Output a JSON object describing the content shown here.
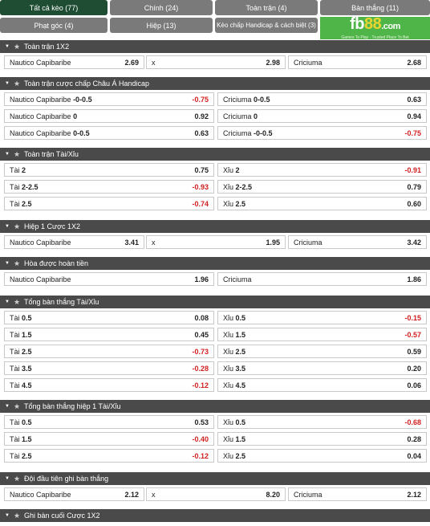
{
  "tabs": [
    {
      "label": "Tất cả kèo (77)",
      "active": true
    },
    {
      "label": "Chính (24)",
      "active": false
    },
    {
      "label": "Toàn trận (4)",
      "active": false
    },
    {
      "label": "Bàn thắng (11)",
      "active": false
    },
    {
      "label": "Phạt góc (4)",
      "active": false
    },
    {
      "label": "Hiệp (13)",
      "active": false
    },
    {
      "label": "Kèo chấp Handicap & cách biệt (3)",
      "active": false
    }
  ],
  "logo": {
    "brand_a": "fb",
    "brand_b": "88",
    "brand_c": ".com",
    "tagline": "Games To Play · Trusted Place To Bet"
  },
  "sections": [
    {
      "title": "Toàn trận 1X2",
      "layout": "three",
      "rows": [
        [
          {
            "name": "Nautico Capibaribe",
            "odd": "2.69"
          },
          {
            "name": "x",
            "odd": "2.98"
          },
          {
            "name": "Criciuma",
            "odd": "2.68"
          }
        ]
      ]
    },
    {
      "title": "Toàn trận cược chấp Châu Á Handicap",
      "layout": "two",
      "rows": [
        [
          {
            "name": "Nautico Capibaribe",
            "line": "-0-0.5",
            "odd": "-0.75"
          },
          {
            "name": "Criciuma",
            "line": "0-0.5",
            "odd": "0.63"
          }
        ],
        [
          {
            "name": "Nautico Capibaribe",
            "line": "0",
            "odd": "0.92"
          },
          {
            "name": "Criciuma",
            "line": "0",
            "odd": "0.94"
          }
        ],
        [
          {
            "name": "Nautico Capibaribe",
            "line": "0-0.5",
            "odd": "0.63"
          },
          {
            "name": "Criciuma",
            "line": "-0-0.5",
            "odd": "-0.75"
          }
        ]
      ]
    },
    {
      "title": "Toàn trận Tài/Xỉu",
      "layout": "two",
      "rows": [
        [
          {
            "name": "Tài",
            "line": "2",
            "odd": "0.75"
          },
          {
            "name": "Xỉu",
            "line": "2",
            "odd": "-0.91"
          }
        ],
        [
          {
            "name": "Tài",
            "line": "2-2.5",
            "odd": "-0.93"
          },
          {
            "name": "Xỉu",
            "line": "2-2.5",
            "odd": "0.79"
          }
        ],
        [
          {
            "name": "Tài",
            "line": "2.5",
            "odd": "-0.74"
          },
          {
            "name": "Xỉu",
            "line": "2.5",
            "odd": "0.60"
          }
        ]
      ]
    },
    {
      "title": "Hiệp 1 Cược 1X2",
      "layout": "three",
      "rows": [
        [
          {
            "name": "Nautico Capibaribe",
            "odd": "3.41"
          },
          {
            "name": "x",
            "odd": "1.95"
          },
          {
            "name": "Criciuma",
            "odd": "3.42"
          }
        ]
      ]
    },
    {
      "title": "Hòa được hoàn tiền",
      "layout": "two",
      "rows": [
        [
          {
            "name": "Nautico Capibaribe",
            "odd": "1.96"
          },
          {
            "name": "Criciuma",
            "odd": "1.86"
          }
        ]
      ]
    },
    {
      "title": "Tổng bàn thắng Tài/Xỉu",
      "layout": "two",
      "rows": [
        [
          {
            "name": "Tài",
            "line": "0.5",
            "odd": "0.08"
          },
          {
            "name": "Xỉu",
            "line": "0.5",
            "odd": "-0.15"
          }
        ],
        [
          {
            "name": "Tài",
            "line": "1.5",
            "odd": "0.45"
          },
          {
            "name": "Xỉu",
            "line": "1.5",
            "odd": "-0.57"
          }
        ],
        [
          {
            "name": "Tài",
            "line": "2.5",
            "odd": "-0.73"
          },
          {
            "name": "Xỉu",
            "line": "2.5",
            "odd": "0.59"
          }
        ],
        [
          {
            "name": "Tài",
            "line": "3.5",
            "odd": "-0.28"
          },
          {
            "name": "Xỉu",
            "line": "3.5",
            "odd": "0.20"
          }
        ],
        [
          {
            "name": "Tài",
            "line": "4.5",
            "odd": "-0.12"
          },
          {
            "name": "Xỉu",
            "line": "4.5",
            "odd": "0.06"
          }
        ]
      ]
    },
    {
      "title": "Tổng bàn thắng hiệp 1 Tài/Xỉu",
      "layout": "two",
      "rows": [
        [
          {
            "name": "Tài",
            "line": "0.5",
            "odd": "0.53"
          },
          {
            "name": "Xỉu",
            "line": "0.5",
            "odd": "-0.68"
          }
        ],
        [
          {
            "name": "Tài",
            "line": "1.5",
            "odd": "-0.40"
          },
          {
            "name": "Xỉu",
            "line": "1.5",
            "odd": "0.28"
          }
        ],
        [
          {
            "name": "Tài",
            "line": "2.5",
            "odd": "-0.12"
          },
          {
            "name": "Xỉu",
            "line": "2.5",
            "odd": "0.04"
          }
        ]
      ]
    },
    {
      "title": "Đội đầu tiên ghi bàn thắng",
      "layout": "three",
      "rows": [
        [
          {
            "name": "Nautico Capibaribe",
            "odd": "2.12"
          },
          {
            "name": "x",
            "odd": "8.20"
          },
          {
            "name": "Criciuma",
            "odd": "2.12"
          }
        ]
      ]
    },
    {
      "title": "Ghi bàn cuối Cược 1X2",
      "layout": "three",
      "rows": []
    }
  ],
  "icons": {
    "collapse": "chevron-down-icon",
    "favorite": "star-icon"
  },
  "colors": {
    "active_tab": "#1f4d34",
    "tab": "#7a7a7a",
    "section_header": "#4a4a4a",
    "negative_odd": "#d21f1f",
    "logo_bg": "#4fb548"
  }
}
